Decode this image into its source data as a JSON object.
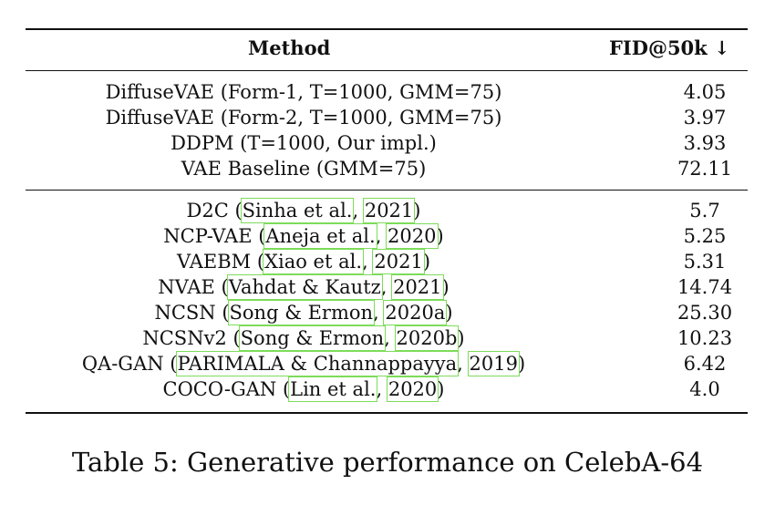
{
  "table": {
    "header": {
      "method": "Method",
      "fid": "FID@50k ↓"
    },
    "group1": [
      {
        "method": "DiffuseVAE (Form-1, T=1000, GMM=75)",
        "fid": "4.05"
      },
      {
        "method": "DiffuseVAE (Form-2, T=1000, GMM=75)",
        "fid": "3.97"
      },
      {
        "method": "DDPM (T=1000, Our impl.)",
        "fid": "3.93"
      },
      {
        "method": "VAE Baseline (GMM=75)",
        "fid": "72.11"
      }
    ],
    "group2": [
      {
        "name": "D2C",
        "authors": "Sinha et al.",
        "year": "2021",
        "fid": "5.7"
      },
      {
        "name": "NCP-VAE",
        "authors": "Aneja et al.",
        "year": "2020",
        "fid": "5.25"
      },
      {
        "name": "VAEBM",
        "authors": "Xiao et al.",
        "year": "2021",
        "fid": "5.31"
      },
      {
        "name": "NVAE",
        "authors": "Vahdat & Kautz",
        "year": "2021",
        "fid": "14.74"
      },
      {
        "name": "NCSN",
        "authors": "Song & Ermon",
        "year": "2020a",
        "fid": "25.30"
      },
      {
        "name": "NCSNv2",
        "authors": "Song & Ermon",
        "year": "2020b",
        "fid": "10.23"
      },
      {
        "name": "QA-GAN",
        "authors": "PARIMALA & Channappayya",
        "year": "2019",
        "fid": "6.42"
      },
      {
        "name": "COCO-GAN",
        "authors": "Lin et al.",
        "year": "2020",
        "fid": "4.0"
      }
    ]
  },
  "caption": "Table 5: Generative performance on CelebA-64"
}
